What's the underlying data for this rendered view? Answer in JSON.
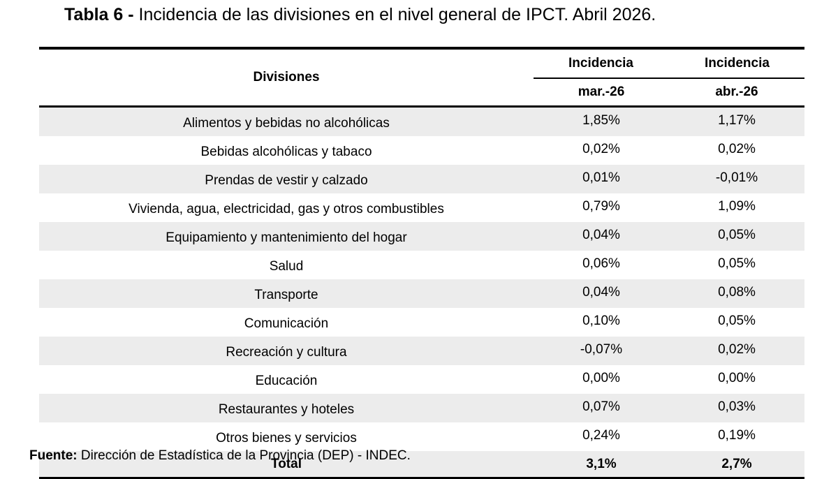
{
  "title": {
    "lead": "Tabla 6 -",
    "text": " Incidencia de las divisiones en el nivel general de IPCT.  Abril 2026."
  },
  "table": {
    "header": {
      "divisiones": "Divisiones",
      "incidencia_1": "Incidencia",
      "incidencia_2": "Incidencia",
      "period_1": "mar.-26",
      "period_2": "abr.-26"
    },
    "rows": [
      {
        "division": "Alimentos y bebidas no alcohólicas",
        "mar": "1,85%",
        "abr": "1,17%"
      },
      {
        "division": "Bebidas alcohólicas y tabaco",
        "mar": "0,02%",
        "abr": "0,02%"
      },
      {
        "division": "Prendas de vestir y calzado",
        "mar": "0,01%",
        "abr": "-0,01%"
      },
      {
        "division": "Vivienda, agua, electricidad, gas y otros combustibles",
        "mar": "0,79%",
        "abr": "1,09%"
      },
      {
        "division": "Equipamiento y mantenimiento del hogar",
        "mar": "0,04%",
        "abr": "0,05%"
      },
      {
        "division": "Salud",
        "mar": "0,06%",
        "abr": "0,05%"
      },
      {
        "division": "Transporte",
        "mar": "0,04%",
        "abr": "0,08%"
      },
      {
        "division": "Comunicación",
        "mar": "0,10%",
        "abr": "0,05%"
      },
      {
        "division": "Recreación y cultura",
        "mar": "-0,07%",
        "abr": "0,02%"
      },
      {
        "division": "Educación",
        "mar": "0,00%",
        "abr": "0,00%"
      },
      {
        "division": "Restaurantes y hoteles",
        "mar": "0,07%",
        "abr": "0,03%"
      },
      {
        "division": "Otros bienes y servicios",
        "mar": "0,24%",
        "abr": "0,19%"
      }
    ],
    "total": {
      "label": "Total",
      "mar": "3,1%",
      "abr": "2,7%"
    }
  },
  "source": {
    "label": "Fuente:",
    "text": " Dirección de Estadística de la Provincia (DEP) - INDEC."
  },
  "colors": {
    "row_shade": "#ececec",
    "rule": "#000000"
  }
}
